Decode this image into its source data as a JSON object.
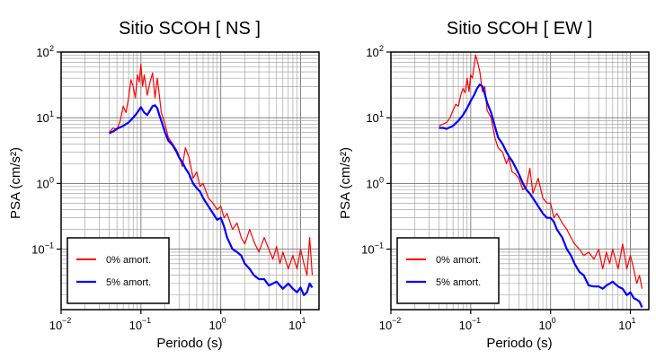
{
  "chart_data": [
    {
      "type": "line",
      "title": "Sitio SCOH [ NS ]",
      "xlabel": "Periodo (s)",
      "ylabel": "PSA (cm/s²)",
      "xscale": "log",
      "yscale": "log",
      "xlim": [
        0.01,
        17
      ],
      "ylim": [
        0.012,
        100
      ],
      "grid": true,
      "legend_position": "bottom-left",
      "x_ticks": [
        {
          "base": "10",
          "exp": "−2"
        },
        {
          "base": "10",
          "exp": "−1"
        },
        {
          "base": "10",
          "exp": "0"
        },
        {
          "base": "10",
          "exp": "1"
        }
      ],
      "y_ticks": [
        {
          "value": 100,
          "base": "10",
          "exp": "2"
        },
        {
          "value": 10,
          "base": "10",
          "exp": "1"
        },
        {
          "value": 1,
          "base": "10",
          "exp": "0"
        },
        {
          "value": 0.1,
          "base": "10",
          "exp": "−1"
        }
      ],
      "series": [
        {
          "name": "0% amort.",
          "color": "#ff0000",
          "x": [
            0.04,
            0.045,
            0.05,
            0.055,
            0.06,
            0.065,
            0.07,
            0.075,
            0.08,
            0.085,
            0.09,
            0.095,
            0.1,
            0.105,
            0.11,
            0.12,
            0.13,
            0.14,
            0.15,
            0.16,
            0.17,
            0.18,
            0.2,
            0.22,
            0.25,
            0.28,
            0.3,
            0.33,
            0.36,
            0.4,
            0.45,
            0.5,
            0.55,
            0.6,
            0.7,
            0.8,
            0.9,
            1.0,
            1.1,
            1.2,
            1.4,
            1.6,
            1.8,
            2.0,
            2.3,
            2.6,
            3.0,
            3.5,
            4.0,
            4.5,
            5.0,
            5.5,
            6.0,
            7.0,
            8.0,
            9.0,
            10.0,
            11.0,
            12.0,
            13.0,
            14.0
          ],
          "y": [
            6,
            7,
            6.5,
            9,
            15,
            12,
            20,
            38,
            30,
            20,
            45,
            35,
            65,
            30,
            45,
            22,
            35,
            48,
            20,
            40,
            22,
            12,
            8,
            5,
            4,
            3.2,
            2.7,
            1.8,
            3.5,
            2.5,
            1.2,
            1.5,
            0.9,
            1.0,
            0.6,
            0.5,
            0.4,
            0.45,
            0.3,
            0.35,
            0.2,
            0.25,
            0.15,
            0.12,
            0.2,
            0.13,
            0.09,
            0.15,
            0.1,
            0.07,
            0.11,
            0.06,
            0.09,
            0.05,
            0.08,
            0.05,
            0.1,
            0.06,
            0.04,
            0.15,
            0.04
          ]
        },
        {
          "name": "5% amort.",
          "color": "#0000ff",
          "x": [
            0.04,
            0.045,
            0.05,
            0.06,
            0.07,
            0.08,
            0.09,
            0.1,
            0.11,
            0.12,
            0.13,
            0.14,
            0.15,
            0.16,
            0.17,
            0.18,
            0.2,
            0.22,
            0.25,
            0.28,
            0.3,
            0.33,
            0.36,
            0.4,
            0.45,
            0.5,
            0.55,
            0.6,
            0.7,
            0.8,
            0.9,
            1.0,
            1.1,
            1.2,
            1.4,
            1.6,
            1.8,
            2.0,
            2.3,
            2.6,
            3.0,
            3.5,
            4.0,
            4.5,
            5.0,
            5.5,
            6.0,
            7.0,
            8.0,
            9.0,
            10.0,
            11.0,
            12.0,
            13.0,
            14.0
          ],
          "y": [
            5.8,
            6.2,
            6.8,
            7.5,
            8.5,
            10,
            12,
            14.5,
            12,
            11,
            13,
            15,
            15.5,
            14,
            11,
            9,
            6,
            4.5,
            3.8,
            3.0,
            2.5,
            2.1,
            1.7,
            1.4,
            1.0,
            0.85,
            0.75,
            0.6,
            0.45,
            0.35,
            0.28,
            0.3,
            0.22,
            0.15,
            0.1,
            0.09,
            0.08,
            0.06,
            0.05,
            0.04,
            0.035,
            0.035,
            0.028,
            0.03,
            0.032,
            0.028,
            0.025,
            0.03,
            0.025,
            0.022,
            0.026,
            0.02,
            0.022,
            0.03,
            0.026
          ]
        }
      ]
    },
    {
      "type": "line",
      "title": "Sitio SCOH [ EW ]",
      "xlabel": "Periodo (s)",
      "ylabel": "PSA (cm/s²)",
      "xscale": "log",
      "yscale": "log",
      "xlim": [
        0.01,
        17
      ],
      "ylim": [
        0.012,
        100
      ],
      "grid": true,
      "legend_position": "bottom-left",
      "x_ticks": [
        {
          "base": "10",
          "exp": "−2"
        },
        {
          "base": "10",
          "exp": "−1"
        },
        {
          "base": "10",
          "exp": "0"
        },
        {
          "base": "10",
          "exp": "1"
        }
      ],
      "y_ticks": [
        {
          "value": 100,
          "base": "10",
          "exp": "2"
        },
        {
          "value": 10,
          "base": "10",
          "exp": "1"
        },
        {
          "value": 1,
          "base": "10",
          "exp": "0"
        },
        {
          "value": 0.1,
          "base": "10",
          "exp": "−1"
        }
      ],
      "series": [
        {
          "name": "0% amort.",
          "color": "#ff0000",
          "x": [
            0.04,
            0.045,
            0.05,
            0.055,
            0.06,
            0.065,
            0.07,
            0.075,
            0.08,
            0.085,
            0.09,
            0.095,
            0.1,
            0.105,
            0.11,
            0.115,
            0.12,
            0.13,
            0.14,
            0.15,
            0.16,
            0.18,
            0.2,
            0.22,
            0.25,
            0.28,
            0.3,
            0.33,
            0.36,
            0.4,
            0.45,
            0.5,
            0.55,
            0.6,
            0.7,
            0.8,
            0.9,
            1.0,
            1.1,
            1.2,
            1.4,
            1.6,
            1.8,
            2.0,
            2.3,
            2.6,
            3.0,
            3.5,
            4.0,
            4.5,
            5.0,
            5.5,
            6.0,
            7.0,
            8.0,
            9.0,
            10.0,
            11.0,
            12.0,
            13.0,
            14.0
          ],
          "y": [
            7.5,
            8,
            8.5,
            10,
            13,
            16,
            15,
            22,
            28,
            24,
            40,
            25,
            45,
            40,
            60,
            90,
            75,
            50,
            25,
            30,
            13,
            10,
            5,
            3.5,
            3.0,
            2.0,
            2.5,
            1.5,
            1.4,
            1.2,
            0.8,
            0.9,
            1.7,
            0.7,
            1.2,
            0.6,
            0.5,
            0.5,
            0.3,
            0.35,
            0.25,
            0.2,
            0.15,
            0.12,
            0.1,
            0.08,
            0.09,
            0.07,
            0.1,
            0.05,
            0.09,
            0.06,
            0.1,
            0.05,
            0.12,
            0.05,
            0.08,
            0.05,
            0.03,
            0.04,
            0.025
          ]
        },
        {
          "name": "5% amort.",
          "color": "#0000ff",
          "x": [
            0.04,
            0.045,
            0.05,
            0.06,
            0.07,
            0.08,
            0.09,
            0.1,
            0.11,
            0.12,
            0.13,
            0.14,
            0.15,
            0.16,
            0.18,
            0.2,
            0.22,
            0.25,
            0.28,
            0.3,
            0.33,
            0.36,
            0.4,
            0.45,
            0.5,
            0.55,
            0.6,
            0.7,
            0.8,
            0.9,
            1.0,
            1.1,
            1.2,
            1.4,
            1.6,
            1.8,
            2.0,
            2.3,
            2.6,
            3.0,
            3.5,
            4.0,
            4.5,
            5.0,
            5.5,
            6.0,
            7.0,
            8.0,
            9.0,
            10.0,
            11.0,
            12.0,
            13.0,
            14.0
          ],
          "y": [
            7,
            7,
            6.8,
            7.5,
            9,
            11,
            14,
            18,
            22,
            28,
            32,
            30,
            23,
            17,
            12,
            7.5,
            5,
            4,
            3,
            2.6,
            2.2,
            1.8,
            1.4,
            1.0,
            0.8,
            0.7,
            0.6,
            0.45,
            0.35,
            0.3,
            0.3,
            0.26,
            0.2,
            0.15,
            0.1,
            0.08,
            0.06,
            0.045,
            0.04,
            0.028,
            0.027,
            0.027,
            0.025,
            0.028,
            0.03,
            0.032,
            0.027,
            0.025,
            0.02,
            0.022,
            0.018,
            0.017,
            0.016,
            0.013
          ]
        }
      ]
    }
  ]
}
